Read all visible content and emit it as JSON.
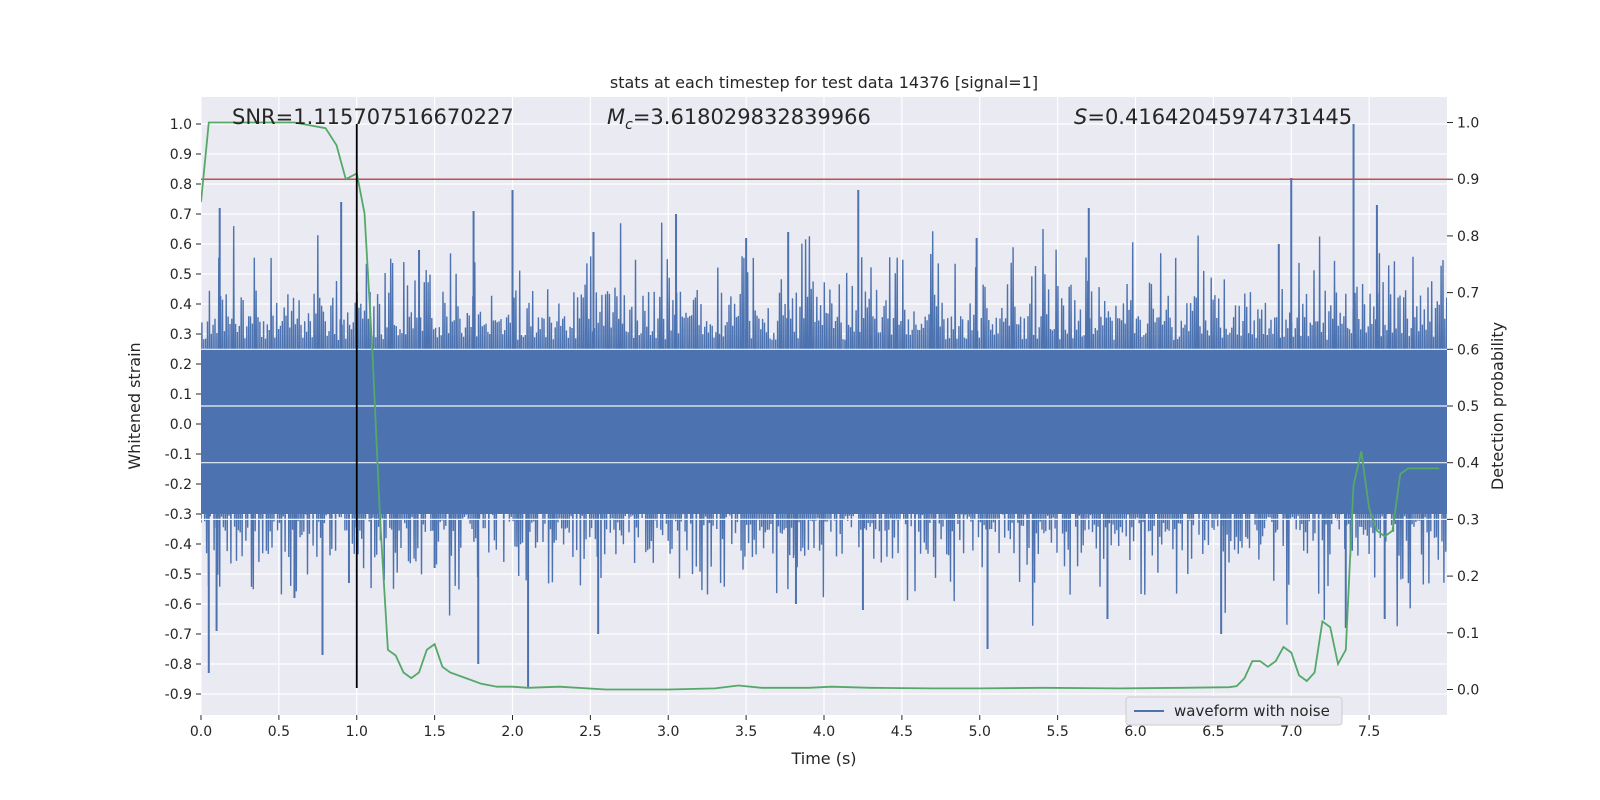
{
  "chart_data": {
    "type": "line",
    "title": "stats at each timestep for test data 14376 [signal=1]",
    "xlabel": "Time (s)",
    "ylabel": "Whitened strain",
    "y2label": "Detection probability",
    "xlim": [
      0.0,
      8.0
    ],
    "ylim": [
      -0.97,
      1.09
    ],
    "y2lim": [
      -0.045,
      1.045
    ],
    "x_ticks": [
      "0.0",
      "0.5",
      "1.0",
      "1.5",
      "2.0",
      "2.5",
      "3.0",
      "3.5",
      "4.0",
      "4.5",
      "5.0",
      "5.5",
      "6.0",
      "6.5",
      "7.0",
      "7.5"
    ],
    "y_ticks": [
      "1.0",
      "0.9",
      "0.8",
      "0.7",
      "0.6",
      "0.5",
      "0.4",
      "0.3",
      "0.2",
      "0.1",
      "0.0",
      "-0.1",
      "-0.2",
      "-0.3",
      "-0.4",
      "-0.5",
      "-0.6",
      "-0.7",
      "-0.8",
      "-0.9"
    ],
    "y2_ticks": [
      "1.0",
      "0.9",
      "0.8",
      "0.7",
      "0.6",
      "0.5",
      "0.4",
      "0.3",
      "0.2",
      "0.1",
      "0.0"
    ],
    "grid": true,
    "legend_position": "lower-right",
    "annotations": {
      "snr": "SNR=1.115707516670227",
      "mc_symbol": "M",
      "mc_subscript": "c",
      "mc_value": "=3.618029832839966",
      "s_symbol": "S",
      "s_value": "=0.41642045974731445"
    },
    "threshold": {
      "value": 0.9,
      "axis": "right",
      "color": "#c44e52"
    },
    "marker_line": {
      "x": 1.0,
      "y_range": [
        -0.88,
        1.0
      ],
      "color": "#000000"
    },
    "series": [
      {
        "name": "waveform with noise",
        "axis": "left",
        "color": "#4c72b0",
        "style": "dense noisy waveform, core band ±0.33, peaks ±0.75",
        "spikes": [
          [
            0.05,
            -0.83
          ],
          [
            0.12,
            0.72
          ],
          [
            0.1,
            -0.69
          ],
          [
            0.6,
            -0.58
          ],
          [
            0.78,
            -0.77
          ],
          [
            0.9,
            0.74
          ],
          [
            0.95,
            -0.53
          ],
          [
            1.4,
            0.58
          ],
          [
            1.5,
            -0.48
          ],
          [
            1.75,
            0.71
          ],
          [
            1.78,
            -0.8
          ],
          [
            2.0,
            0.78
          ],
          [
            2.1,
            -0.88
          ],
          [
            2.52,
            0.64
          ],
          [
            2.55,
            -0.7
          ],
          [
            3.05,
            0.7
          ],
          [
            3.5,
            0.62
          ],
          [
            3.77,
            0.64
          ],
          [
            3.82,
            -0.6
          ],
          [
            4.22,
            0.78
          ],
          [
            4.25,
            -0.62
          ],
          [
            4.98,
            0.62
          ],
          [
            5.05,
            -0.75
          ],
          [
            5.7,
            0.72
          ],
          [
            5.82,
            -0.65
          ],
          [
            6.55,
            -0.7
          ],
          [
            6.92,
            0.6
          ],
          [
            7.0,
            0.82
          ],
          [
            7.35,
            -0.68
          ],
          [
            7.4,
            1.0
          ],
          [
            7.55,
            0.73
          ],
          [
            7.6,
            -0.65
          ]
        ]
      },
      {
        "name": "detection probability",
        "axis": "right",
        "color": "#55a868",
        "x": [
          0.0,
          0.05,
          0.1,
          0.2,
          0.4,
          0.6,
          0.8,
          0.87,
          0.93,
          1.0,
          1.05,
          1.1,
          1.15,
          1.2,
          1.25,
          1.3,
          1.35,
          1.4,
          1.45,
          1.5,
          1.55,
          1.6,
          1.7,
          1.8,
          1.9,
          2.0,
          2.1,
          2.3,
          2.6,
          3.0,
          3.3,
          3.45,
          3.6,
          3.9,
          4.05,
          4.3,
          4.7,
          5.0,
          5.4,
          5.9,
          6.3,
          6.6,
          6.65,
          6.7,
          6.75,
          6.8,
          6.85,
          6.9,
          6.95,
          7.0,
          7.05,
          7.1,
          7.15,
          7.2,
          7.25,
          7.3,
          7.35,
          7.4,
          7.45,
          7.5,
          7.55,
          7.6,
          7.65,
          7.7,
          7.75,
          7.8,
          7.85,
          7.9,
          7.95
        ],
        "y": [
          0.86,
          1.0,
          1.0,
          1.0,
          1.0,
          1.0,
          0.99,
          0.96,
          0.9,
          0.91,
          0.84,
          0.6,
          0.3,
          0.07,
          0.06,
          0.03,
          0.02,
          0.03,
          0.07,
          0.08,
          0.04,
          0.03,
          0.02,
          0.01,
          0.005,
          0.005,
          0.003,
          0.005,
          0.0,
          0.0,
          0.002,
          0.007,
          0.003,
          0.003,
          0.005,
          0.003,
          0.002,
          0.002,
          0.003,
          0.002,
          0.003,
          0.004,
          0.006,
          0.02,
          0.05,
          0.05,
          0.04,
          0.05,
          0.075,
          0.065,
          0.025,
          0.015,
          0.03,
          0.12,
          0.11,
          0.045,
          0.07,
          0.36,
          0.42,
          0.32,
          0.28,
          0.27,
          0.28,
          0.38,
          0.39,
          0.39,
          0.39,
          0.39,
          0.39
        ]
      }
    ]
  }
}
